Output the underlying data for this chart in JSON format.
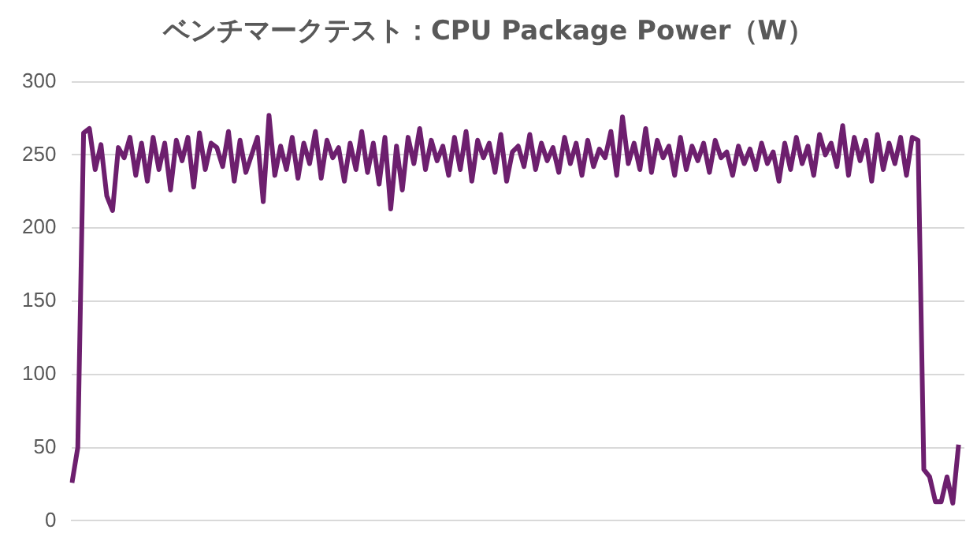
{
  "chart_data": {
    "type": "line",
    "title": "ベンチマークテスト：CPU Package Power（W）",
    "categories": [
      null,
      null,
      null,
      null,
      null,
      null,
      null,
      null,
      null,
      null,
      null,
      null,
      null,
      null,
      null,
      null,
      null,
      null,
      null,
      null,
      null,
      null,
      null,
      null,
      null,
      null,
      null,
      null,
      null,
      null,
      null,
      null,
      null,
      null,
      null,
      null,
      null,
      null,
      null,
      null,
      null,
      null,
      null,
      null,
      null,
      null,
      null,
      null,
      null,
      null,
      null,
      null,
      null,
      null,
      null,
      null,
      null,
      null,
      null,
      null,
      null,
      null,
      null,
      null,
      null,
      null,
      null,
      null,
      null,
      null,
      null,
      null,
      null,
      null,
      null,
      null,
      null,
      null,
      null,
      null,
      null,
      null,
      null,
      null,
      null,
      null,
      null,
      null,
      null,
      null,
      null,
      null,
      null,
      null,
      null,
      null,
      null,
      null,
      null,
      null,
      null,
      null,
      null,
      null,
      null,
      null,
      null,
      null,
      null,
      null,
      null,
      null,
      null,
      null,
      null,
      null,
      null,
      null,
      null,
      null,
      null,
      null,
      null,
      null,
      null,
      null,
      null,
      null,
      null,
      null,
      null,
      null,
      null,
      null,
      null,
      null,
      null,
      null,
      null,
      null,
      null,
      null,
      null,
      null,
      null,
      null,
      null,
      null,
      null,
      null,
      null,
      null,
      null,
      null,
      null
    ],
    "series": [
      {
        "color": "#6d1f6e",
        "values": [
          26,
          50,
          265,
          268,
          240,
          257,
          222,
          212,
          255,
          248,
          262,
          236,
          258,
          232,
          262,
          240,
          258,
          226,
          260,
          246,
          262,
          228,
          265,
          240,
          258,
          255,
          242,
          266,
          232,
          260,
          238,
          250,
          262,
          218,
          277,
          236,
          256,
          240,
          262,
          234,
          258,
          244,
          266,
          234,
          260,
          248,
          255,
          232,
          258,
          240,
          266,
          238,
          258,
          230,
          262,
          213,
          256,
          226,
          262,
          244,
          268,
          240,
          260,
          246,
          256,
          236,
          262,
          240,
          266,
          232,
          260,
          248,
          258,
          238,
          264,
          232,
          252,
          256,
          242,
          264,
          240,
          258,
          246,
          255,
          238,
          262,
          244,
          258,
          236,
          260,
          242,
          254,
          248,
          266,
          236,
          276,
          244,
          258,
          240,
          268,
          238,
          260,
          248,
          256,
          236,
          262,
          240,
          256,
          246,
          258,
          238,
          260,
          248,
          252,
          236,
          256,
          244,
          254,
          240,
          258,
          244,
          252,
          232,
          258,
          240,
          262,
          244,
          256,
          236,
          264,
          250,
          258,
          242,
          270,
          236,
          262,
          246,
          260,
          232,
          264,
          240,
          258,
          244,
          262,
          236,
          262,
          260,
          35,
          30,
          13,
          13,
          30,
          12,
          52,
          null
        ]
      }
    ],
    "ylim": [
      0,
      300
    ],
    "yticks": [
      0,
      50,
      100,
      150,
      200,
      250,
      300
    ],
    "grid": "y",
    "legend": false,
    "marker": "none",
    "line_style": "solid"
  }
}
